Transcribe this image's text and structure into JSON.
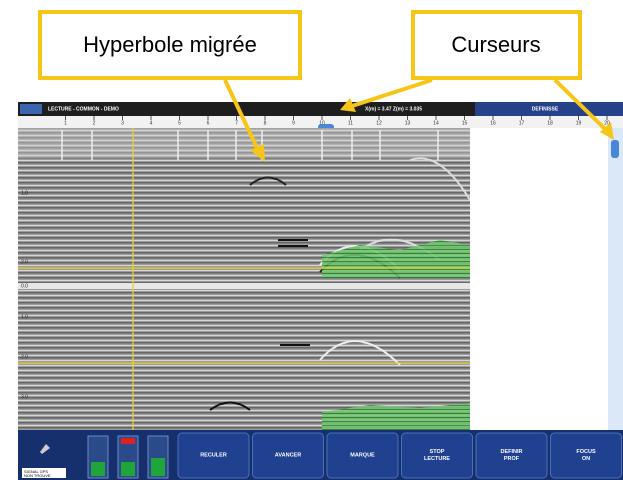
{
  "callouts": [
    "Hyperbole migrée",
    "Curseurs"
  ],
  "window_title": "LECTURE - COMMON - DEMO",
  "cursor_readout": "X(m) = 3.47  Z(m) = 3.035",
  "panel_title": "DEFINISSE",
  "ruler": [
    "1",
    "2",
    "3",
    "4",
    "5",
    "6",
    "7",
    "8",
    "9",
    "10",
    "11",
    "12",
    "13",
    "14",
    "15",
    "16",
    "17",
    "18",
    "19",
    "20"
  ],
  "depth_labels": [
    "1.0",
    "2.0",
    "0.0",
    "1.0",
    "2.0",
    "3.0"
  ],
  "gps_status": [
    "SIGNAL GPS",
    "NON TROUVE"
  ],
  "buttons": [
    [
      "RECULER"
    ],
    [
      "AVANCER"
    ],
    [
      "MARQUE"
    ],
    [
      "STOP",
      "LECTURE"
    ],
    [
      "DEFINIR",
      "PROF"
    ],
    [
      "FOCUS",
      "ON"
    ]
  ]
}
